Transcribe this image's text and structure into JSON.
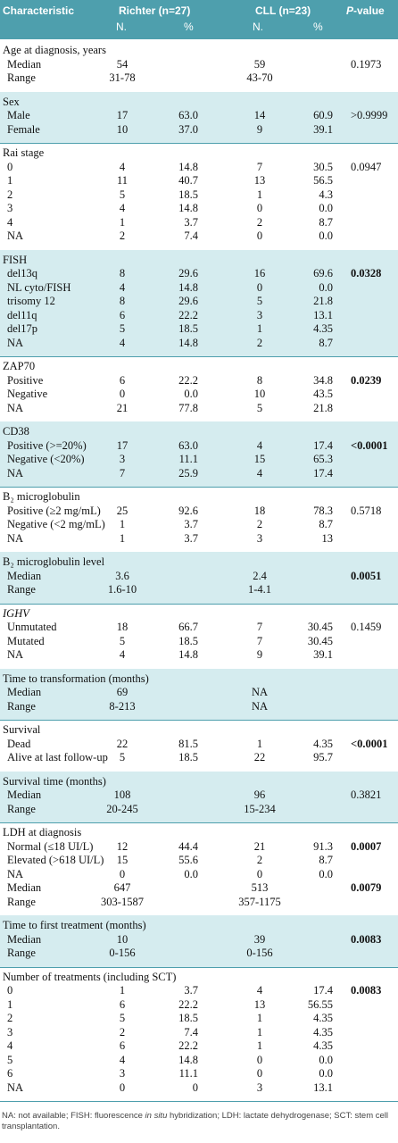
{
  "header": {
    "characteristic": "Characteristic",
    "richter": "Richter (n=27)",
    "cll": "CLL (n=23)",
    "p_value_italic": "P",
    "p_value_rest": "-value",
    "n1": "N.",
    "pct1": "%",
    "n2": "N.",
    "pct2": "%"
  },
  "sections": [
    {
      "title": "Age at diagnosis, years",
      "rows": [
        [
          "Median",
          "54",
          null,
          "59",
          null,
          "0.1973"
        ],
        [
          "Range",
          "31-78",
          null,
          "43-70",
          null,
          null
        ]
      ]
    },
    {
      "title": "Sex",
      "rows": [
        [
          "Male",
          "17",
          "63.0",
          "14",
          "60.9",
          ">0.9999"
        ],
        [
          "Female",
          "10",
          "37.0",
          "9",
          "39.1",
          null
        ]
      ]
    },
    {
      "title": "Rai stage",
      "rows": [
        [
          "0",
          "4",
          "14.8",
          "7",
          "30.5",
          "0.0947"
        ],
        [
          "1",
          "11",
          "40.7",
          "13",
          "56.5",
          null
        ],
        [
          "2",
          "5",
          "18.5",
          "1",
          "4.3",
          null
        ],
        [
          "3",
          "4",
          "14.8",
          "0",
          "0.0",
          null
        ],
        [
          "4",
          "1",
          "3.7",
          "2",
          "8.7",
          null
        ],
        [
          "NA",
          "2",
          "7.4",
          "0",
          "0.0",
          null
        ]
      ]
    },
    {
      "title": "FISH",
      "p_bold": true,
      "rows": [
        [
          "del13q",
          "8",
          "29.6",
          "16",
          "69.6",
          "0.0328"
        ],
        [
          "NL cyto/FISH",
          "4",
          "14.8",
          "0",
          "0.0",
          null
        ],
        [
          "trisomy 12",
          "8",
          "29.6",
          "5",
          "21.8",
          null
        ],
        [
          "del11q",
          "6",
          "22.2",
          "3",
          "13.1",
          null
        ],
        [
          "del17p",
          "5",
          "18.5",
          "1",
          "4.35",
          null
        ],
        [
          "NA",
          "4",
          "14.8",
          "2",
          "8.7",
          null
        ]
      ]
    },
    {
      "title": "ZAP70",
      "p_bold": true,
      "rows": [
        [
          "Positive",
          "6",
          "22.2",
          "8",
          "34.8",
          "0.0239"
        ],
        [
          "Negative",
          "0",
          "0.0",
          "10",
          "43.5",
          null
        ],
        [
          "NA",
          "21",
          "77.8",
          "5",
          "21.8",
          null
        ]
      ]
    },
    {
      "title": "CD38",
      "p_bold": true,
      "rows": [
        [
          "Positive (>=20%)",
          "17",
          "63.0",
          "4",
          "17.4",
          "<0.0001"
        ],
        [
          "Negative (<20%)",
          "3",
          "11.1",
          "15",
          "65.3",
          null
        ],
        [
          "NA",
          "7",
          "25.9",
          "4",
          "17.4",
          null
        ]
      ]
    },
    {
      "title": "B₂ microglobulin",
      "rows": [
        [
          "Positive (≥2 mg/mL)",
          "25",
          "92.6",
          "18",
          "78.3",
          "0.5718"
        ],
        [
          "Negative (<2 mg/mL)",
          "1",
          "3.7",
          "2",
          "8.7",
          null
        ],
        [
          "NA",
          "1",
          "3.7",
          "3",
          "13",
          null
        ]
      ]
    },
    {
      "title": "B₂ microglobulin level",
      "p_bold": true,
      "rows": [
        [
          "Median",
          "3.6",
          null,
          "2.4",
          null,
          "0.0051"
        ],
        [
          "Range",
          "1.6-10",
          null,
          "1-4.1",
          null,
          null
        ]
      ]
    },
    {
      "title": "IGHV",
      "title_italic": true,
      "rows": [
        [
          "Unmutated",
          "18",
          "66.7",
          "7",
          "30.45",
          "0.1459"
        ],
        [
          "Mutated",
          "5",
          "18.5",
          "7",
          "30.45",
          null
        ],
        [
          "NA",
          "4",
          "14.8",
          "9",
          "39.1",
          null
        ]
      ]
    },
    {
      "title": "Time to transformation (months)",
      "rows": [
        [
          "Median",
          "69",
          null,
          "NA",
          null,
          null
        ],
        [
          "Range",
          "8-213",
          null,
          "NA",
          null,
          null
        ]
      ]
    },
    {
      "title": "Survival",
      "p_bold": true,
      "rows": [
        [
          "Dead",
          "22",
          "81.5",
          "1",
          "4.35",
          "<0.0001"
        ],
        [
          "Alive at last follow-up",
          "5",
          "18.5",
          "22",
          "95.7",
          null
        ]
      ]
    },
    {
      "title": "Survival time (months)",
      "rows": [
        [
          "Median",
          "108",
          null,
          "96",
          null,
          "0.3821"
        ],
        [
          "Range",
          "20-245",
          null,
          "15-234",
          null,
          null
        ]
      ]
    },
    {
      "title": "LDH at diagnosis",
      "p_bold": true,
      "rows": [
        [
          "Normal (≤18 UI/L)",
          "12",
          "44.4",
          "21",
          "91.3",
          "0.0007"
        ],
        [
          "Elevated (>618 UI/L)",
          "15",
          "55.6",
          "2",
          "8.7",
          null
        ],
        [
          "NA",
          "0",
          "0.0",
          "0",
          "0.0",
          null
        ],
        [
          "Median",
          "647",
          null,
          "513",
          null,
          "0.0079"
        ],
        [
          "Range",
          "303-1587",
          null,
          "357-1175",
          null,
          null
        ]
      ]
    },
    {
      "title": "Time to first treatment (months)",
      "p_bold": true,
      "rows": [
        [
          "Median",
          "10",
          null,
          "39",
          null,
          "0.0083"
        ],
        [
          "Range",
          "0-156",
          null,
          "0-156",
          null,
          null
        ]
      ]
    },
    {
      "title": "Number of treatments (including SCT)",
      "p_bold": true,
      "rows": [
        [
          "0",
          "1",
          "3.7",
          "4",
          "17.4",
          "0.0083"
        ],
        [
          "1",
          "6",
          "22.2",
          "13",
          "56.55",
          null
        ],
        [
          "2",
          "5",
          "18.5",
          "1",
          "4.35",
          null
        ],
        [
          "3",
          "2",
          "7.4",
          "1",
          "4.35",
          null
        ],
        [
          "4",
          "6",
          "22.2",
          "1",
          "4.35",
          null
        ],
        [
          "5",
          "4",
          "14.8",
          "0",
          "0.0",
          null
        ],
        [
          "6",
          "3",
          "11.1",
          "0",
          "0.0",
          null
        ],
        [
          "NA",
          "0",
          "0",
          "3",
          "13.1",
          null
        ]
      ]
    }
  ],
  "footnote": [
    "NA: not available; FISH: fluorescence ",
    "in situ",
    " hybridization; LDH: lactate dehydrogenase; SCT: stem cell transplantation."
  ]
}
